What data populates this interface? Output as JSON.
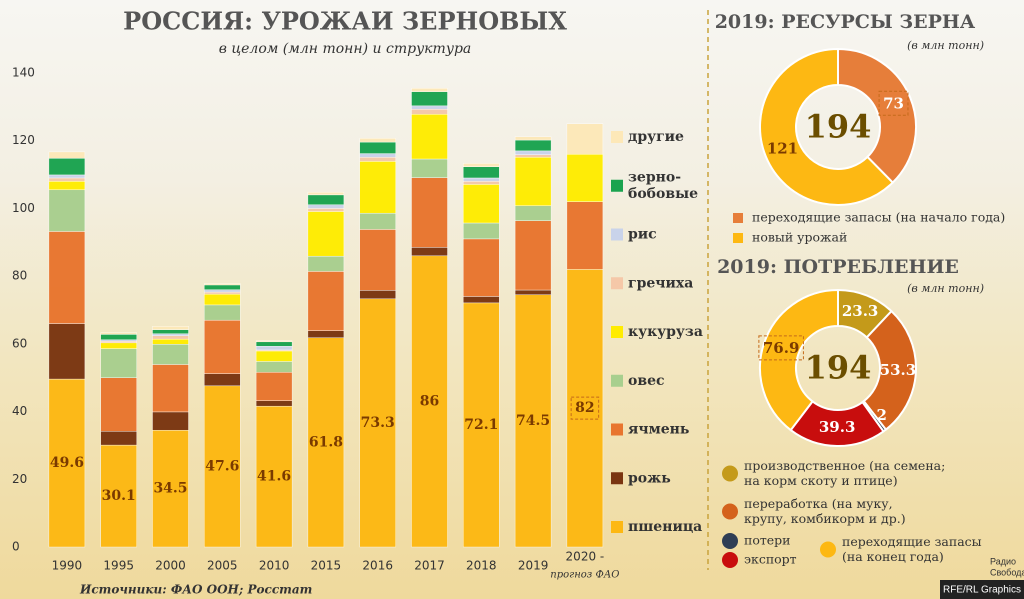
{
  "chart_data": [
    {
      "type": "bar",
      "stacked": true,
      "title": "РОССИЯ: УРОЖАИ ЗЕРНОВЫХ",
      "subtitle": "в целом (млн тонн) и структура",
      "categories": [
        "1990",
        "1995",
        "2000",
        "2005",
        "2010",
        "2015",
        "2016",
        "2017",
        "2018",
        "2019",
        "2020 -"
      ],
      "category_note": "прогноз ФАО",
      "ylim": [
        0,
        140
      ],
      "yticks": [
        0,
        20,
        40,
        60,
        80,
        100,
        120,
        140
      ],
      "series": [
        {
          "name": "пшеница",
          "color": "#fdb813",
          "values": [
            49.6,
            30.1,
            34.5,
            47.6,
            41.6,
            61.8,
            73.3,
            86,
            72.1,
            74.5,
            82
          ]
        },
        {
          "name": "рожь",
          "color": "#7a3510",
          "values": [
            16.4,
            4.1,
            5.4,
            3.6,
            1.6,
            2.1,
            2.5,
            2.5,
            1.9,
            1.4,
            null
          ]
        },
        {
          "name": "ячмень",
          "color": "#e8752e",
          "values": [
            27.2,
            15.8,
            14,
            15.8,
            8.4,
            17.5,
            18,
            20.6,
            17,
            20.5,
            20
          ]
        },
        {
          "name": "овес",
          "color": "#a8cf8e",
          "values": [
            12.3,
            8.6,
            6,
            4.5,
            3.2,
            4.5,
            4.8,
            5.5,
            4.7,
            4.4,
            null
          ]
        },
        {
          "name": "кукуруза",
          "color": "#ffec00",
          "values": [
            2.5,
            1.7,
            1.5,
            3.2,
            3.1,
            13.2,
            15.3,
            13.2,
            11.4,
            14.3,
            14
          ]
        },
        {
          "name": "гречиха",
          "color": "#f5c8a8",
          "values": [
            1,
            0.5,
            1,
            0.6,
            0.3,
            0.9,
            1.2,
            1.5,
            0.9,
            0.8,
            null
          ]
        },
        {
          "name": "рис",
          "color": "#c9d3ea",
          "values": [
            0.9,
            0.4,
            0.6,
            0.7,
            1.1,
            1.1,
            1.1,
            1,
            1,
            1.1,
            null
          ]
        },
        {
          "name": "зерно-\nбобовые",
          "color": "#1aa34f",
          "values": [
            4.9,
            1.6,
            1.2,
            1.4,
            1.3,
            2.9,
            3.4,
            4.2,
            3.3,
            3.2,
            null
          ]
        },
        {
          "name": "другие",
          "color": "#fde8b8",
          "values": [
            1.9,
            0.5,
            1,
            0.4,
            0.3,
            0.8,
            1.1,
            1,
            1,
            1,
            9
          ]
        }
      ]
    },
    {
      "type": "pie",
      "donut": true,
      "title": "2019: РЕСУРСЫ ЗЕРНА",
      "subtitle": "(в млн тонн)",
      "total": 194,
      "legend_marker": "square",
      "categories": [
        "переходящие запасы (на начало года)",
        "новый урожай"
      ],
      "values": [
        73,
        121
      ],
      "colors": [
        "#e67e3a",
        "#fdb813"
      ]
    },
    {
      "type": "pie",
      "donut": true,
      "title": "2019: ПОТРЕБЛЕНИЕ",
      "subtitle": "(в млн тонн)",
      "total": 194,
      "legend_marker": "circle",
      "categories": [
        "производственное (на семена;\nна корм скоту и птице)",
        "переработка (на муку,\nкрупу, комбикорм и др.)",
        "потери",
        "экспорт",
        "переходящие запасы\n(на конец года)"
      ],
      "values": [
        23.3,
        53.3,
        1.2,
        39.3,
        76.9
      ],
      "colors": [
        "#c49a1a",
        "#d4621c",
        "#2f3e55",
        "#c80d0d",
        "#fdb813"
      ]
    }
  ],
  "source": "Источники: ФАО ООН; Росстат",
  "logo": "Радио\nСвобода",
  "credit": "RFE/RL Graphics"
}
